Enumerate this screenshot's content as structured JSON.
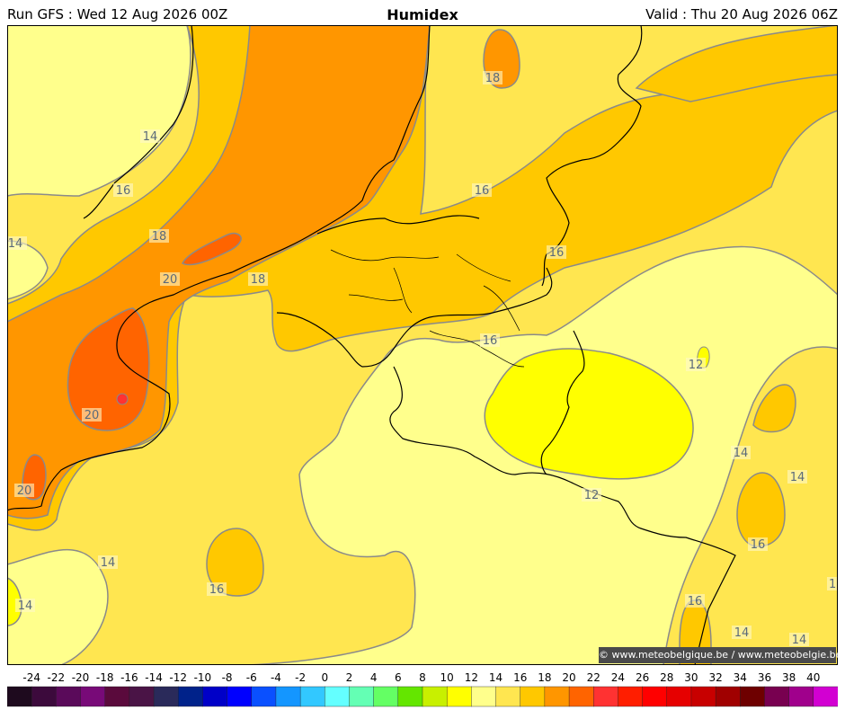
{
  "header": {
    "run": "Run GFS : Wed 12 Aug 2026 00Z",
    "title": "Humidex",
    "valid": "Valid : Thu 20 Aug 2026 06Z"
  },
  "map": {
    "contour_labels": [
      "14",
      "16",
      "18",
      "20",
      "18",
      "16",
      "18",
      "16",
      "14",
      "16",
      "20",
      "20",
      "14",
      "16",
      "14",
      "12",
      "12",
      "14",
      "14",
      "16",
      "14",
      "14",
      "16"
    ],
    "edge_label": "1",
    "copyright": "© www.meteobelgique.be / www.meteobelgie.be"
  },
  "legend": {
    "ticks": [
      "-24",
      "-22",
      "-20",
      "-18",
      "-16",
      "-14",
      "-12",
      "-10",
      "-8",
      "-6",
      "-4",
      "-2",
      "0",
      "2",
      "4",
      "6",
      "8",
      "10",
      "12",
      "14",
      "16",
      "18",
      "20",
      "22",
      "24",
      "26",
      "28",
      "30",
      "32",
      "34",
      "36",
      "38",
      "40"
    ],
    "colors": [
      "#1e0a1e",
      "#3c0a3c",
      "#5a0a5a",
      "#780a78",
      "#5a0a3c",
      "#4a1446",
      "#2a2a5a",
      "#00228a",
      "#0000c8",
      "#0000ff",
      "#0a50ff",
      "#1496ff",
      "#32c8ff",
      "#64ffff",
      "#64ffb4",
      "#64ff64",
      "#64e600",
      "#c8f000",
      "#ffff00",
      "#ffff8c",
      "#ffe650",
      "#ffc800",
      "#ff9600",
      "#ff6400",
      "#ff3232",
      "#ff1e00",
      "#ff0000",
      "#e60000",
      "#c80000",
      "#a00000",
      "#6e0000",
      "#780050",
      "#a0008c",
      "#d200d2"
    ]
  }
}
